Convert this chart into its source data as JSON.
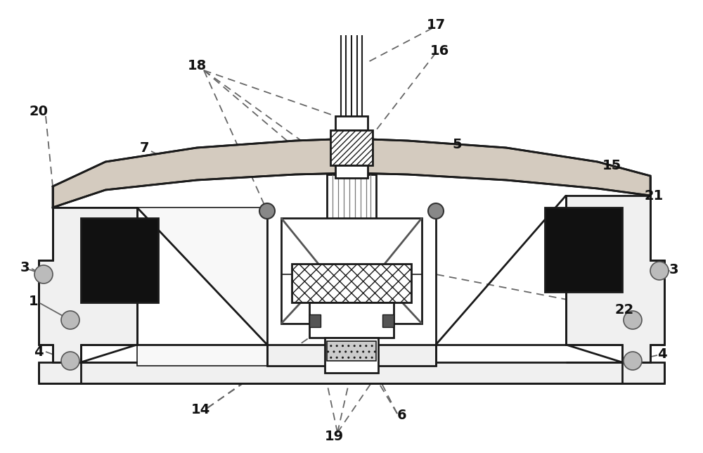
{
  "bg_color": "#ffffff",
  "line_color": "#1a1a1a",
  "dashed_color": "#666666",
  "dot_fill": "#d4cbbf",
  "black_fill": "#111111",
  "figsize": [
    10.0,
    6.44
  ],
  "dpi": 100
}
